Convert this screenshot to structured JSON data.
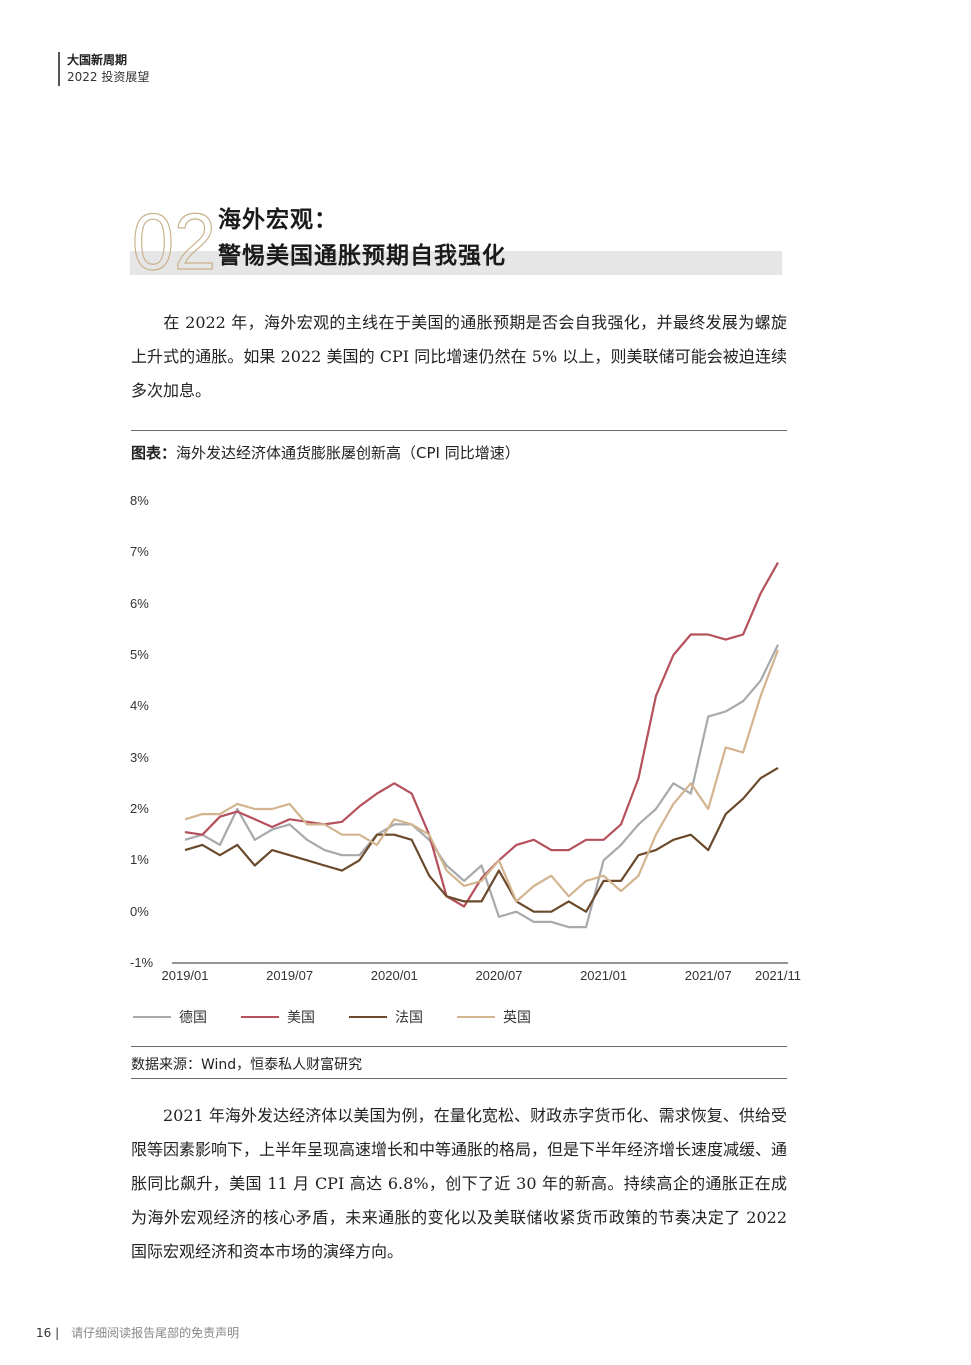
{
  "running_head": {
    "title": "大国新周期",
    "subtitle": "2022 投资展望"
  },
  "section": {
    "number": "02",
    "title_line1": "海外宏观：",
    "title_line2": "警惕美国通胀预期自我强化"
  },
  "intro_paragraph": "在 2022 年，海外宏观的主线在于美国的通胀预期是否会自我强化，并最终发展为螺旋上升式的通胀。如果 2022 美国的 CPI 同比增速仍然在 5% 以上，则美联储可能会被迫连续多次加息。",
  "chart_caption": {
    "label": "图表：",
    "text": "海外发达经济体通货膨胀屡创新高（CPI 同比增速）"
  },
  "chart_source": "数据来源：Wind，恒泰私人财富研究",
  "body_paragraph": "2021 年海外发达经济体以美国为例，在量化宽松、财政赤字货币化、需求恢复、供给受限等因素影响下，上半年呈现高速增长和中等通胀的格局，但是下半年经济增长速度减缓、通胀同比飙升，美国 11 月 CPI 高达 6.8%，创下了近 30 年的新高。持续高企的通胀正在成为海外宏观经济的核心矛盾，未来通胀的变化以及美联储收紧货币政策的节奏决定了 2022 国际宏观经济和资本市场的演绎方向。",
  "footer": {
    "page": "16 |",
    "text": "请仔细阅读报告尾部的免责声明"
  },
  "colors": {
    "germany": "#a7a9ac",
    "us": "#b5505c",
    "france": "#6b4a2b",
    "uk": "#d2b48f",
    "accent_outline": "#c8b08a",
    "band": "#e6e6e6"
  },
  "chart_data": {
    "type": "line",
    "title": "海外发达经济体通货膨胀屡创新高（CPI 同比增速）",
    "xlabel": "",
    "ylabel": "",
    "ylim": [
      -1,
      8
    ],
    "yticks": [
      "8%",
      "7%",
      "6%",
      "5%",
      "4%",
      "3%",
      "2%",
      "1%",
      "0%",
      "-1%"
    ],
    "xtick_labels": [
      "2019/01",
      "2019/07",
      "2020/01",
      "2020/07",
      "2021/01",
      "2021/07",
      "2021/11"
    ],
    "xtick_index": [
      0,
      6,
      12,
      18,
      24,
      30,
      34
    ],
    "grid": false,
    "legend_position": "bottom",
    "x": [
      "2019/01",
      "2019/02",
      "2019/03",
      "2019/04",
      "2019/05",
      "2019/06",
      "2019/07",
      "2019/08",
      "2019/09",
      "2019/10",
      "2019/11",
      "2019/12",
      "2020/01",
      "2020/02",
      "2020/03",
      "2020/04",
      "2020/05",
      "2020/06",
      "2020/07",
      "2020/08",
      "2020/09",
      "2020/10",
      "2020/11",
      "2020/12",
      "2021/01",
      "2021/02",
      "2021/03",
      "2021/04",
      "2021/05",
      "2021/06",
      "2021/07",
      "2021/08",
      "2021/09",
      "2021/10",
      "2021/11"
    ],
    "series": [
      {
        "name": "德国",
        "color": "#a7a9ac",
        "values": [
          1.4,
          1.5,
          1.3,
          2.0,
          1.4,
          1.6,
          1.7,
          1.4,
          1.2,
          1.1,
          1.1,
          1.5,
          1.7,
          1.7,
          1.4,
          0.9,
          0.6,
          0.9,
          -0.1,
          0.0,
          -0.2,
          -0.2,
          -0.3,
          -0.3,
          1.0,
          1.3,
          1.7,
          2.0,
          2.5,
          2.3,
          3.8,
          3.9,
          4.1,
          4.5,
          5.2
        ]
      },
      {
        "name": "美国",
        "color": "#b5505c",
        "values": [
          1.55,
          1.5,
          1.85,
          1.95,
          1.8,
          1.65,
          1.8,
          1.75,
          1.7,
          1.75,
          2.05,
          2.3,
          2.5,
          2.3,
          1.5,
          0.3,
          0.1,
          0.65,
          1.0,
          1.3,
          1.4,
          1.2,
          1.2,
          1.4,
          1.4,
          1.7,
          2.6,
          4.2,
          5.0,
          5.4,
          5.4,
          5.3,
          5.4,
          6.2,
          6.8
        ]
      },
      {
        "name": "法国",
        "color": "#6b4a2b",
        "values": [
          1.2,
          1.3,
          1.1,
          1.3,
          0.9,
          1.2,
          1.1,
          1.0,
          0.9,
          0.8,
          1.0,
          1.5,
          1.5,
          1.4,
          0.7,
          0.3,
          0.2,
          0.2,
          0.8,
          0.2,
          0.0,
          0.0,
          0.2,
          0.0,
          0.6,
          0.6,
          1.1,
          1.2,
          1.4,
          1.5,
          1.2,
          1.9,
          2.2,
          2.6,
          2.8
        ]
      },
      {
        "name": "英国",
        "color": "#d2b48f",
        "values": [
          1.8,
          1.9,
          1.9,
          2.1,
          2.0,
          2.0,
          2.1,
          1.7,
          1.7,
          1.5,
          1.5,
          1.3,
          1.8,
          1.7,
          1.5,
          0.8,
          0.5,
          0.6,
          1.0,
          0.2,
          0.5,
          0.7,
          0.3,
          0.6,
          0.7,
          0.4,
          0.7,
          1.5,
          2.1,
          2.5,
          2.0,
          3.2,
          3.1,
          4.2,
          5.1
        ]
      }
    ]
  }
}
